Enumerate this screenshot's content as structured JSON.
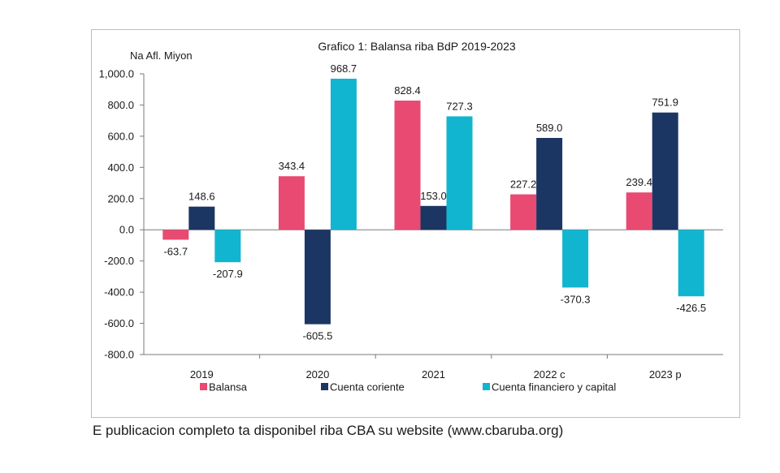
{
  "caption": "E publicacion completo ta disponibel riba CBA su website (www.cbaruba.org)",
  "chart_data": {
    "type": "bar",
    "title": "Grafico 1: Balansa riba BdP 2019-2023",
    "unit_label": "Na Afl. Miyon",
    "categories": [
      "2019",
      "2020",
      "2021",
      "2022 c",
      "2023 p"
    ],
    "series": [
      {
        "name": "Balansa",
        "color": "#e84a72",
        "values": [
          -63.7,
          343.4,
          828.4,
          227.2,
          239.4
        ],
        "labels": [
          "-63.7",
          "343.4",
          "828.4",
          "227.2",
          "239.4"
        ]
      },
      {
        "name": "Cuenta coriente",
        "color": "#1c3664",
        "values": [
          148.6,
          -605.5,
          153.0,
          589.0,
          751.9
        ],
        "labels": [
          "148.6",
          "-605.5",
          "153.0",
          "589.0",
          "751.9"
        ]
      },
      {
        "name": "Cuenta financiero y capital",
        "color": "#12b5cf",
        "values": [
          -207.9,
          968.7,
          727.3,
          -370.3,
          -426.5
        ],
        "labels": [
          "-207.9",
          "968.7",
          "727.3",
          "-370.3",
          "-426.5"
        ]
      }
    ],
    "ylim": [
      -800,
      1000
    ],
    "yticks": [
      1000,
      800,
      600,
      400,
      200,
      0,
      -200,
      -400,
      -600,
      -800
    ],
    "ytick_labels": [
      "1,000.0",
      "800.0",
      "600.0",
      "400.0",
      "200.0",
      "0.0",
      "-200.0",
      "-400.0",
      "-600.0",
      "-800.0"
    ],
    "grid": false,
    "legend_position": "bottom"
  }
}
